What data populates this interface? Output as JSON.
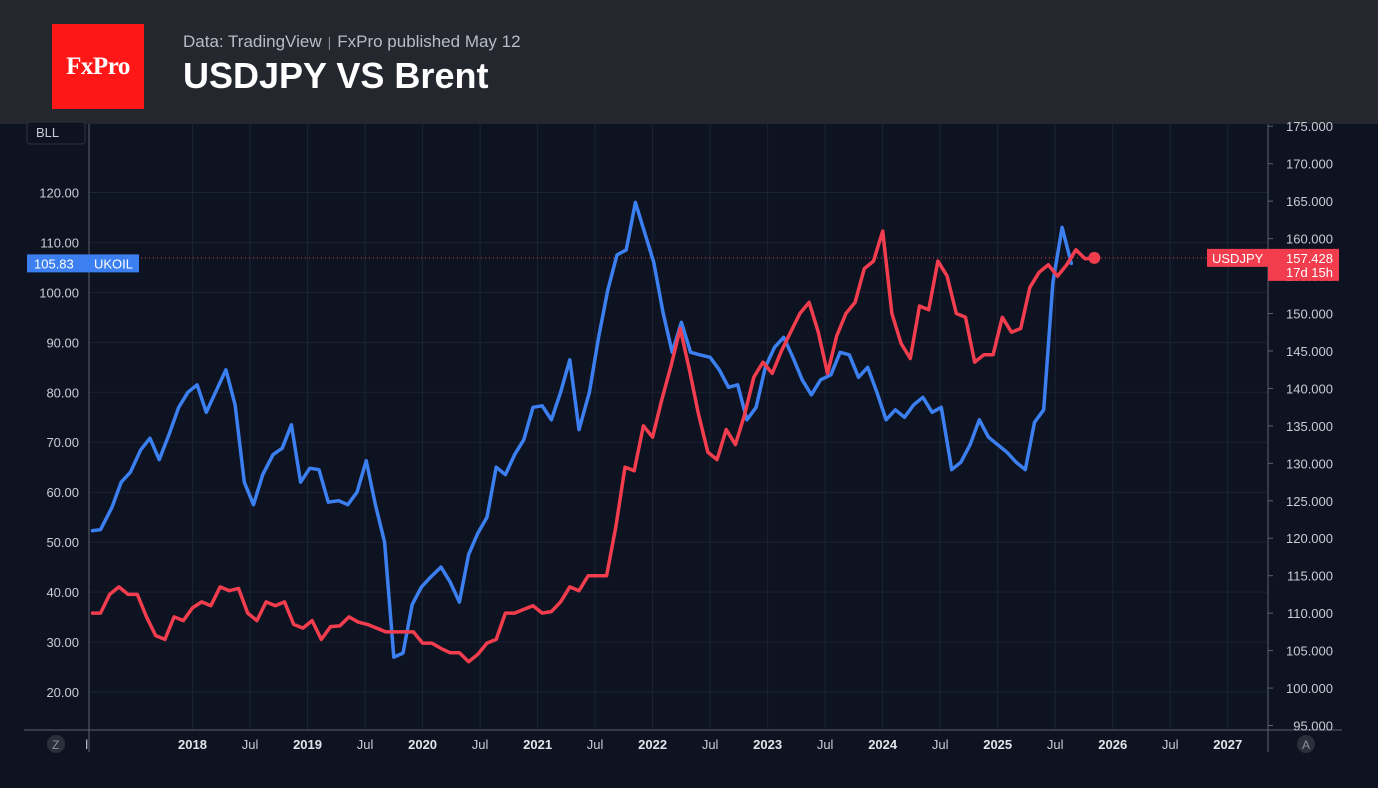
{
  "header": {
    "logo_text": "FxPro",
    "source": "Data: TradingView",
    "separator": "|",
    "published": "FxPro published May 12",
    "title": "USDJPY VS Brent"
  },
  "colors": {
    "background": "#0d1321",
    "header_bg": "#24272e",
    "logo_bg": "#ff1616",
    "brent": "#3b7ff0",
    "usdjpy": "#f23d4f"
  },
  "controls": {
    "bll_label": "BLL",
    "z_label": "Z",
    "a_label": "A"
  },
  "chart_data": {
    "type": "line",
    "grid": true,
    "x_range": [
      2017.1,
      2027.35
    ],
    "x_ticks": [
      {
        "t": 2017.08,
        "label": "l",
        "major": false
      },
      {
        "t": 2018.0,
        "label": "2018",
        "major": true
      },
      {
        "t": 2018.5,
        "label": "Jul",
        "major": false
      },
      {
        "t": 2019.0,
        "label": "2019",
        "major": true
      },
      {
        "t": 2019.5,
        "label": "Jul",
        "major": false
      },
      {
        "t": 2020.0,
        "label": "2020",
        "major": true
      },
      {
        "t": 2020.5,
        "label": "Jul",
        "major": false
      },
      {
        "t": 2021.0,
        "label": "2021",
        "major": true
      },
      {
        "t": 2021.5,
        "label": "Jul",
        "major": false
      },
      {
        "t": 2022.0,
        "label": "2022",
        "major": true
      },
      {
        "t": 2022.5,
        "label": "Jul",
        "major": false
      },
      {
        "t": 2023.0,
        "label": "2023",
        "major": true
      },
      {
        "t": 2023.5,
        "label": "Jul",
        "major": false
      },
      {
        "t": 2024.0,
        "label": "2024",
        "major": true
      },
      {
        "t": 2024.5,
        "label": "Jul",
        "major": false
      },
      {
        "t": 2025.0,
        "label": "2025",
        "major": true
      },
      {
        "t": 2025.5,
        "label": "Jul",
        "major": false
      },
      {
        "t": 2026.0,
        "label": "2026",
        "major": true
      },
      {
        "t": 2026.5,
        "label": "Jul",
        "major": false
      },
      {
        "t": 2027.0,
        "label": "2027",
        "major": true
      }
    ],
    "left_axis": {
      "range": [
        12.4,
        133.7
      ],
      "ticks": [
        "20.00",
        "30.00",
        "40.00",
        "50.00",
        "60.00",
        "70.00",
        "80.00",
        "90.00",
        "100.00",
        "110.00",
        "120.00"
      ]
    },
    "right_axis": {
      "range": [
        94.4,
        175.3
      ],
      "ticks": [
        "95.000",
        "100.000",
        "105.000",
        "110.000",
        "115.000",
        "120.000",
        "125.000",
        "130.000",
        "135.000",
        "140.000",
        "145.000",
        "150.000",
        "155.000",
        "160.000",
        "165.000",
        "170.000",
        "175.000"
      ]
    },
    "series": [
      {
        "name": "UKOIL",
        "axis": "left",
        "color": "#3b7ff0",
        "last_label": "105.83",
        "points": [
          [
            2017.13,
            52.3
          ],
          [
            2017.2,
            52.5
          ],
          [
            2017.3,
            57.0
          ],
          [
            2017.38,
            62.0
          ],
          [
            2017.46,
            64.0
          ],
          [
            2017.55,
            68.5
          ],
          [
            2017.63,
            70.8
          ],
          [
            2017.71,
            66.5
          ],
          [
            2017.8,
            71.8
          ],
          [
            2017.88,
            77.0
          ],
          [
            2017.96,
            80.0
          ],
          [
            2018.04,
            81.5
          ],
          [
            2018.12,
            76.0
          ],
          [
            2018.2,
            80.0
          ],
          [
            2018.29,
            84.5
          ],
          [
            2018.37,
            77.5
          ],
          [
            2018.45,
            62.0
          ],
          [
            2018.53,
            57.5
          ],
          [
            2018.61,
            63.5
          ],
          [
            2018.7,
            67.5
          ],
          [
            2018.78,
            68.8
          ],
          [
            2018.86,
            73.5
          ],
          [
            2018.94,
            62.0
          ],
          [
            2019.02,
            64.8
          ],
          [
            2019.1,
            64.5
          ],
          [
            2019.18,
            58.0
          ],
          [
            2019.27,
            58.3
          ],
          [
            2019.35,
            57.5
          ],
          [
            2019.43,
            60.0
          ],
          [
            2019.51,
            66.3
          ],
          [
            2019.59,
            57.5
          ],
          [
            2019.67,
            50.0
          ],
          [
            2019.75,
            27.0
          ],
          [
            2019.83,
            27.8
          ],
          [
            2019.91,
            37.5
          ],
          [
            2019.99,
            41.0
          ],
          [
            2020.07,
            43.0
          ],
          [
            2020.16,
            45.0
          ],
          [
            2020.24,
            42.0
          ],
          [
            2020.32,
            38.0
          ],
          [
            2020.4,
            47.5
          ],
          [
            2020.48,
            51.8
          ],
          [
            2020.56,
            55.0
          ],
          [
            2020.64,
            65.0
          ],
          [
            2020.72,
            63.5
          ],
          [
            2020.8,
            67.5
          ],
          [
            2020.88,
            70.5
          ],
          [
            2020.96,
            77.0
          ],
          [
            2021.04,
            77.3
          ],
          [
            2021.12,
            74.5
          ],
          [
            2021.2,
            80.0
          ],
          [
            2021.28,
            86.5
          ],
          [
            2021.36,
            72.5
          ],
          [
            2021.45,
            80.0
          ],
          [
            2021.53,
            91.0
          ],
          [
            2021.61,
            100.5
          ],
          [
            2021.69,
            107.5
          ],
          [
            2021.77,
            108.5
          ],
          [
            2021.85,
            118.0
          ],
          [
            2021.93,
            112.0
          ],
          [
            2022.01,
            106.0
          ],
          [
            2022.09,
            96.0
          ],
          [
            2022.17,
            88.0
          ],
          [
            2022.25,
            94.0
          ],
          [
            2022.33,
            88.0
          ],
          [
            2022.41,
            87.5
          ],
          [
            2022.5,
            87.0
          ],
          [
            2022.58,
            84.5
          ],
          [
            2022.66,
            81.0
          ],
          [
            2022.74,
            81.5
          ],
          [
            2022.82,
            74.5
          ],
          [
            2022.9,
            77.0
          ],
          [
            2022.98,
            85.0
          ],
          [
            2023.06,
            89.0
          ],
          [
            2023.14,
            91.0
          ],
          [
            2023.22,
            87.0
          ],
          [
            2023.3,
            82.5
          ],
          [
            2023.38,
            79.5
          ],
          [
            2023.46,
            82.5
          ],
          [
            2023.55,
            83.5
          ],
          [
            2023.63,
            88.0
          ],
          [
            2023.71,
            87.5
          ],
          [
            2023.79,
            83.0
          ],
          [
            2023.87,
            85.0
          ],
          [
            2023.95,
            80.0
          ],
          [
            2024.03,
            74.5
          ],
          [
            2024.11,
            76.5
          ],
          [
            2024.19,
            75.0
          ],
          [
            2024.27,
            77.5
          ],
          [
            2024.35,
            79.0
          ],
          [
            2024.43,
            76.0
          ],
          [
            2024.51,
            77.0
          ],
          [
            2024.6,
            64.5
          ],
          [
            2024.68,
            66.0
          ],
          [
            2024.76,
            69.5
          ],
          [
            2024.84,
            74.5
          ],
          [
            2024.92,
            71.0
          ],
          [
            2025.0,
            69.5
          ],
          [
            2025.08,
            68.0
          ],
          [
            2025.16,
            66.0
          ],
          [
            2025.24,
            64.5
          ],
          [
            2025.32,
            74.0
          ],
          [
            2025.4,
            76.5
          ],
          [
            2025.48,
            102.0
          ],
          [
            2025.56,
            113.0
          ],
          [
            2025.64,
            105.8
          ]
        ]
      },
      {
        "name": "USDJPY",
        "axis": "right",
        "color": "#f23d4f",
        "last_label": "157.428",
        "countdown": "17d 15h",
        "points": [
          [
            2017.13,
            110.0
          ],
          [
            2017.2,
            110.0
          ],
          [
            2017.28,
            112.5
          ],
          [
            2017.36,
            113.5
          ],
          [
            2017.44,
            112.5
          ],
          [
            2017.52,
            112.5
          ],
          [
            2017.6,
            109.5
          ],
          [
            2017.68,
            107.0
          ],
          [
            2017.76,
            106.5
          ],
          [
            2017.84,
            109.5
          ],
          [
            2017.92,
            109.0
          ],
          [
            2018.0,
            110.7
          ],
          [
            2018.08,
            111.5
          ],
          [
            2018.16,
            111.0
          ],
          [
            2018.24,
            113.5
          ],
          [
            2018.32,
            113.0
          ],
          [
            2018.4,
            113.3
          ],
          [
            2018.48,
            110.0
          ],
          [
            2018.56,
            109.0
          ],
          [
            2018.64,
            111.5
          ],
          [
            2018.72,
            111.0
          ],
          [
            2018.8,
            111.5
          ],
          [
            2018.88,
            108.5
          ],
          [
            2018.96,
            108.0
          ],
          [
            2019.04,
            109.0
          ],
          [
            2019.12,
            106.5
          ],
          [
            2019.2,
            108.2
          ],
          [
            2019.28,
            108.3
          ],
          [
            2019.36,
            109.5
          ],
          [
            2019.44,
            108.8
          ],
          [
            2019.52,
            108.5
          ],
          [
            2019.6,
            108.0
          ],
          [
            2019.68,
            107.5
          ],
          [
            2019.76,
            107.5
          ],
          [
            2019.84,
            107.5
          ],
          [
            2019.92,
            107.5
          ],
          [
            2020.0,
            106.0
          ],
          [
            2020.08,
            106.0
          ],
          [
            2020.16,
            105.3
          ],
          [
            2020.24,
            104.7
          ],
          [
            2020.32,
            104.7
          ],
          [
            2020.4,
            103.5
          ],
          [
            2020.48,
            104.5
          ],
          [
            2020.56,
            106.0
          ],
          [
            2020.64,
            106.5
          ],
          [
            2020.72,
            110.0
          ],
          [
            2020.8,
            110.0
          ],
          [
            2020.88,
            110.5
          ],
          [
            2020.96,
            111.0
          ],
          [
            2021.04,
            110.0
          ],
          [
            2021.12,
            110.2
          ],
          [
            2021.2,
            111.5
          ],
          [
            2021.28,
            113.5
          ],
          [
            2021.36,
            113.0
          ],
          [
            2021.44,
            115.0
          ],
          [
            2021.52,
            115.0
          ],
          [
            2021.6,
            115.0
          ],
          [
            2021.68,
            121.5
          ],
          [
            2021.76,
            129.5
          ],
          [
            2021.84,
            129.0
          ],
          [
            2021.92,
            135.0
          ],
          [
            2022.0,
            133.5
          ],
          [
            2022.08,
            138.5
          ],
          [
            2022.16,
            143.0
          ],
          [
            2022.24,
            148.0
          ],
          [
            2022.32,
            142.5
          ],
          [
            2022.4,
            136.5
          ],
          [
            2022.48,
            131.5
          ],
          [
            2022.56,
            130.5
          ],
          [
            2022.64,
            134.5
          ],
          [
            2022.72,
            132.5
          ],
          [
            2022.8,
            136.5
          ],
          [
            2022.88,
            141.5
          ],
          [
            2022.96,
            143.5
          ],
          [
            2023.04,
            142.0
          ],
          [
            2023.12,
            145.0
          ],
          [
            2023.2,
            147.5
          ],
          [
            2023.28,
            150.0
          ],
          [
            2023.36,
            151.5
          ],
          [
            2023.44,
            147.5
          ],
          [
            2023.52,
            142.0
          ],
          [
            2023.6,
            147.0
          ],
          [
            2023.68,
            150.0
          ],
          [
            2023.76,
            151.5
          ],
          [
            2023.84,
            156.0
          ],
          [
            2023.92,
            157.0
          ],
          [
            2024.0,
            161.0
          ],
          [
            2024.08,
            150.0
          ],
          [
            2024.16,
            146.0
          ],
          [
            2024.24,
            144.0
          ],
          [
            2024.32,
            151.0
          ],
          [
            2024.4,
            150.5
          ],
          [
            2024.48,
            157.0
          ],
          [
            2024.56,
            155.0
          ],
          [
            2024.64,
            150.0
          ],
          [
            2024.72,
            149.5
          ],
          [
            2024.8,
            143.5
          ],
          [
            2024.88,
            144.5
          ],
          [
            2024.96,
            144.5
          ],
          [
            2025.04,
            149.5
          ],
          [
            2025.12,
            147.5
          ],
          [
            2025.2,
            148.0
          ],
          [
            2025.28,
            153.5
          ],
          [
            2025.36,
            155.5
          ],
          [
            2025.44,
            156.5
          ],
          [
            2025.52,
            155.0
          ],
          [
            2025.6,
            156.5
          ],
          [
            2025.68,
            158.5
          ],
          [
            2025.76,
            157.3
          ],
          [
            2025.84,
            157.428
          ]
        ]
      }
    ]
  }
}
